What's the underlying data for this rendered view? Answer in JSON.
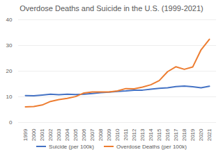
{
  "chart_data": {
    "type": "line",
    "title": "Overdose Deaths and Suicide in the U.S. (1999-2021)",
    "categories": [
      "1999",
      "2000",
      "2001",
      "2002",
      "2003",
      "2004",
      "2005",
      "2006",
      "2007",
      "2008",
      "2009",
      "2010",
      "2011",
      "2012",
      "2013",
      "2014",
      "2015",
      "2016",
      "2017",
      "2018",
      "2019",
      "2020",
      "2021"
    ],
    "series": [
      {
        "name": "Suicide (per 100k)",
        "color": "#4472c4",
        "values": [
          10.5,
          10.4,
          10.7,
          11.0,
          10.8,
          11.0,
          10.9,
          11.0,
          11.3,
          11.6,
          11.8,
          12.1,
          12.3,
          12.6,
          12.6,
          13.0,
          13.3,
          13.5,
          14.0,
          14.2,
          13.9,
          13.5,
          14.1
        ]
      },
      {
        "name": "Overdose Deaths (per 100k)",
        "color": "#ed7d31",
        "values": [
          6.1,
          6.2,
          6.8,
          8.2,
          8.9,
          9.4,
          10.1,
          11.5,
          11.9,
          11.9,
          11.9,
          12.3,
          13.2,
          13.1,
          13.8,
          14.7,
          16.3,
          19.8,
          21.7,
          20.7,
          21.6,
          28.3,
          32.4
        ]
      }
    ],
    "ylim": [
      0,
      40
    ],
    "yticks": [
      0,
      10,
      20,
      30,
      40
    ],
    "grid": true,
    "legend": "bottom"
  }
}
